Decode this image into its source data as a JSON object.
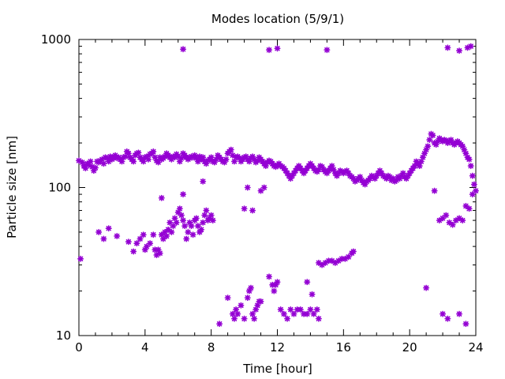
{
  "chart_data": {
    "type": "scatter",
    "title": "Modes location (5/9/1)",
    "xlabel": "Time [hour]",
    "ylabel": "Particle size [nm]",
    "xlim": [
      0,
      24
    ],
    "ylim": [
      10,
      1000
    ],
    "yscale": "log",
    "grid": false,
    "legend": "none",
    "marker": "asterisk",
    "xticks": [
      0,
      4,
      8,
      12,
      16,
      20,
      24
    ],
    "xtick_labels": [
      "0",
      "4",
      "8",
      "12",
      "16",
      "20",
      "24"
    ],
    "yticks": [
      10,
      100,
      1000
    ],
    "ytick_labels": [
      "10",
      "100",
      "1000"
    ],
    "color": "#9400d3",
    "points": [
      [
        0.0,
        152
      ],
      [
        0.1,
        33
      ],
      [
        0.2,
        148
      ],
      [
        0.3,
        140
      ],
      [
        0.4,
        135
      ],
      [
        0.5,
        145
      ],
      [
        0.6,
        142
      ],
      [
        0.7,
        150
      ],
      [
        0.8,
        138
      ],
      [
        0.9,
        130
      ],
      [
        1.0,
        136
      ],
      [
        1.1,
        150
      ],
      [
        1.2,
        148
      ],
      [
        1.3,
        152
      ],
      [
        1.4,
        155
      ],
      [
        1.5,
        145
      ],
      [
        1.6,
        160
      ],
      [
        1.7,
        158
      ],
      [
        1.8,
        150
      ],
      [
        1.9,
        162
      ],
      [
        2.0,
        155
      ],
      [
        2.1,
        160
      ],
      [
        2.2,
        165
      ],
      [
        2.3,
        158
      ],
      [
        2.4,
        160
      ],
      [
        2.5,
        155
      ],
      [
        2.6,
        150
      ],
      [
        2.7,
        160
      ],
      [
        2.8,
        162
      ],
      [
        2.9,
        175
      ],
      [
        3.0,
        170
      ],
      [
        3.1,
        160
      ],
      [
        3.2,
        155
      ],
      [
        3.3,
        150
      ],
      [
        3.4,
        165
      ],
      [
        3.5,
        170
      ],
      [
        3.6,
        172
      ],
      [
        3.7,
        160
      ],
      [
        3.8,
        155
      ],
      [
        3.9,
        150
      ],
      [
        4.0,
        160
      ],
      [
        4.1,
        162
      ],
      [
        4.2,
        155
      ],
      [
        4.3,
        168
      ],
      [
        4.4,
        170
      ],
      [
        4.5,
        175
      ],
      [
        4.6,
        160
      ],
      [
        4.7,
        152
      ],
      [
        4.8,
        148
      ],
      [
        4.9,
        160
      ],
      [
        5.0,
        155
      ],
      [
        5.1,
        158
      ],
      [
        5.2,
        162
      ],
      [
        5.3,
        170
      ],
      [
        5.4,
        165
      ],
      [
        5.5,
        160
      ],
      [
        5.6,
        155
      ],
      [
        5.7,
        162
      ],
      [
        5.8,
        160
      ],
      [
        5.9,
        168
      ],
      [
        6.0,
        162
      ],
      [
        6.1,
        150
      ],
      [
        6.2,
        158
      ],
      [
        6.3,
        170
      ],
      [
        6.4,
        165
      ],
      [
        6.5,
        160
      ],
      [
        6.6,
        155
      ],
      [
        6.7,
        158
      ],
      [
        6.8,
        162
      ],
      [
        6.9,
        160
      ],
      [
        7.0,
        165
      ],
      [
        7.1,
        158
      ],
      [
        7.2,
        150
      ],
      [
        7.3,
        162
      ],
      [
        7.4,
        155
      ],
      [
        7.5,
        160
      ],
      [
        7.6,
        150
      ],
      [
        7.7,
        145
      ],
      [
        7.8,
        152
      ],
      [
        7.9,
        155
      ],
      [
        8.0,
        160
      ],
      [
        8.1,
        150
      ],
      [
        8.2,
        148
      ],
      [
        8.3,
        155
      ],
      [
        8.4,
        165
      ],
      [
        8.5,
        160
      ],
      [
        8.6,
        155
      ],
      [
        8.7,
        150
      ],
      [
        8.8,
        148
      ],
      [
        8.9,
        155
      ],
      [
        9.0,
        170
      ],
      [
        9.1,
        175
      ],
      [
        9.2,
        180
      ],
      [
        9.3,
        165
      ],
      [
        9.4,
        150
      ],
      [
        9.5,
        160
      ],
      [
        9.6,
        162
      ],
      [
        9.7,
        158
      ],
      [
        9.8,
        150
      ],
      [
        9.9,
        155
      ],
      [
        10.0,
        160
      ],
      [
        10.1,
        162
      ],
      [
        10.2,
        155
      ],
      [
        10.3,
        150
      ],
      [
        10.4,
        158
      ],
      [
        10.5,
        162
      ],
      [
        10.6,
        155
      ],
      [
        10.7,
        148
      ],
      [
        10.8,
        152
      ],
      [
        10.9,
        160
      ],
      [
        11.0,
        155
      ],
      [
        11.1,
        150
      ],
      [
        11.2,
        145
      ],
      [
        11.3,
        140
      ],
      [
        11.4,
        148
      ],
      [
        11.5,
        152
      ],
      [
        11.6,
        150
      ],
      [
        11.7,
        145
      ],
      [
        11.8,
        140
      ],
      [
        11.9,
        138
      ],
      [
        12.0,
        142
      ],
      [
        12.1,
        145
      ],
      [
        12.2,
        140
      ],
      [
        12.3,
        138
      ],
      [
        12.4,
        135
      ],
      [
        12.5,
        130
      ],
      [
        12.6,
        125
      ],
      [
        12.7,
        120
      ],
      [
        12.8,
        115
      ],
      [
        12.9,
        120
      ],
      [
        13.0,
        125
      ],
      [
        13.1,
        130
      ],
      [
        13.2,
        135
      ],
      [
        13.3,
        140
      ],
      [
        13.4,
        135
      ],
      [
        13.5,
        130
      ],
      [
        13.6,
        125
      ],
      [
        13.7,
        130
      ],
      [
        13.8,
        135
      ],
      [
        13.9,
        140
      ],
      [
        14.0,
        145
      ],
      [
        14.1,
        140
      ],
      [
        14.2,
        135
      ],
      [
        14.3,
        130
      ],
      [
        14.4,
        128
      ],
      [
        14.5,
        132
      ],
      [
        14.6,
        140
      ],
      [
        14.7,
        138
      ],
      [
        14.8,
        132
      ],
      [
        14.9,
        128
      ],
      [
        15.0,
        125
      ],
      [
        15.1,
        130
      ],
      [
        15.2,
        135
      ],
      [
        15.3,
        140
      ],
      [
        15.4,
        132
      ],
      [
        15.5,
        125
      ],
      [
        15.6,
        120
      ],
      [
        15.7,
        125
      ],
      [
        15.8,
        130
      ],
      [
        15.9,
        128
      ],
      [
        16.0,
        125
      ],
      [
        16.1,
        128
      ],
      [
        16.2,
        130
      ],
      [
        16.3,
        125
      ],
      [
        16.4,
        120
      ],
      [
        16.5,
        118
      ],
      [
        16.6,
        115
      ],
      [
        16.7,
        110
      ],
      [
        16.8,
        112
      ],
      [
        16.9,
        115
      ],
      [
        17.0,
        118
      ],
      [
        17.1,
        112
      ],
      [
        17.2,
        108
      ],
      [
        17.3,
        105
      ],
      [
        17.4,
        110
      ],
      [
        17.5,
        112
      ],
      [
        17.6,
        115
      ],
      [
        17.7,
        120
      ],
      [
        17.8,
        118
      ],
      [
        17.9,
        115
      ],
      [
        18.0,
        120
      ],
      [
        18.1,
        125
      ],
      [
        18.2,
        130
      ],
      [
        18.3,
        125
      ],
      [
        18.4,
        120
      ],
      [
        18.5,
        118
      ],
      [
        18.6,
        115
      ],
      [
        18.7,
        120
      ],
      [
        18.8,
        118
      ],
      [
        18.9,
        112
      ],
      [
        19.0,
        115
      ],
      [
        19.1,
        110
      ],
      [
        19.2,
        112
      ],
      [
        19.3,
        118
      ],
      [
        19.4,
        115
      ],
      [
        19.5,
        120
      ],
      [
        19.6,
        125
      ],
      [
        19.7,
        118
      ],
      [
        19.8,
        115
      ],
      [
        19.9,
        120
      ],
      [
        20.0,
        125
      ],
      [
        20.1,
        130
      ],
      [
        20.2,
        135
      ],
      [
        20.3,
        140
      ],
      [
        20.4,
        150
      ],
      [
        20.5,
        145
      ],
      [
        20.6,
        140
      ],
      [
        20.7,
        150
      ],
      [
        20.8,
        160
      ],
      [
        20.9,
        170
      ],
      [
        21.0,
        180
      ],
      [
        21.1,
        190
      ],
      [
        21.2,
        210
      ],
      [
        21.3,
        230
      ],
      [
        21.4,
        225
      ],
      [
        21.5,
        200
      ],
      [
        21.6,
        195
      ],
      [
        21.7,
        205
      ],
      [
        21.8,
        215
      ],
      [
        21.9,
        210
      ],
      [
        22.0,
        205
      ],
      [
        22.1,
        210
      ],
      [
        22.2,
        208
      ],
      [
        22.3,
        200
      ],
      [
        22.4,
        205
      ],
      [
        22.5,
        210
      ],
      [
        22.6,
        200
      ],
      [
        22.7,
        195
      ],
      [
        22.8,
        200
      ],
      [
        22.9,
        205
      ],
      [
        23.0,
        200
      ],
      [
        23.1,
        195
      ],
      [
        23.2,
        190
      ],
      [
        23.3,
        180
      ],
      [
        23.4,
        170
      ],
      [
        23.5,
        160
      ],
      [
        23.6,
        155
      ],
      [
        23.7,
        140
      ],
      [
        23.8,
        120
      ],
      [
        23.9,
        105
      ],
      [
        24.0,
        95
      ],
      [
        1.2,
        50
      ],
      [
        1.5,
        45
      ],
      [
        1.8,
        53
      ],
      [
        2.3,
        47
      ],
      [
        3.0,
        43
      ],
      [
        3.3,
        37
      ],
      [
        3.5,
        42
      ],
      [
        3.7,
        45
      ],
      [
        3.9,
        48
      ],
      [
        4.0,
        38
      ],
      [
        4.1,
        40
      ],
      [
        4.3,
        42
      ],
      [
        4.5,
        48
      ],
      [
        4.6,
        38
      ],
      [
        4.7,
        35
      ],
      [
        4.8,
        38
      ],
      [
        4.9,
        36
      ],
      [
        5.0,
        48
      ],
      [
        5.1,
        45
      ],
      [
        5.2,
        50
      ],
      [
        5.3,
        47
      ],
      [
        5.4,
        52
      ],
      [
        5.5,
        58
      ],
      [
        5.6,
        50
      ],
      [
        5.7,
        55
      ],
      [
        5.8,
        62
      ],
      [
        5.9,
        58
      ],
      [
        6.0,
        68
      ],
      [
        6.1,
        72
      ],
      [
        6.2,
        65
      ],
      [
        6.3,
        60
      ],
      [
        6.4,
        55
      ],
      [
        6.5,
        45
      ],
      [
        6.6,
        50
      ],
      [
        6.7,
        58
      ],
      [
        6.8,
        55
      ],
      [
        6.9,
        48
      ],
      [
        7.0,
        60
      ],
      [
        7.1,
        62
      ],
      [
        7.2,
        55
      ],
      [
        7.3,
        50
      ],
      [
        7.4,
        52
      ],
      [
        7.5,
        58
      ],
      [
        7.6,
        65
      ],
      [
        7.7,
        70
      ],
      [
        7.8,
        60
      ],
      [
        7.9,
        62
      ],
      [
        8.0,
        65
      ],
      [
        8.1,
        60
      ],
      [
        5.0,
        85
      ],
      [
        6.3,
        90
      ],
      [
        7.5,
        110
      ],
      [
        8.5,
        12
      ],
      [
        9.0,
        18
      ],
      [
        9.3,
        14
      ],
      [
        9.4,
        13
      ],
      [
        9.5,
        15
      ],
      [
        9.6,
        14
      ],
      [
        9.8,
        16
      ],
      [
        10.0,
        13
      ],
      [
        10.2,
        18
      ],
      [
        10.3,
        20
      ],
      [
        10.4,
        21
      ],
      [
        10.5,
        14
      ],
      [
        10.6,
        13
      ],
      [
        10.7,
        15
      ],
      [
        10.8,
        16
      ],
      [
        10.9,
        17
      ],
      [
        11.0,
        17
      ],
      [
        11.5,
        25
      ],
      [
        11.7,
        22
      ],
      [
        11.8,
        20
      ],
      [
        11.9,
        22
      ],
      [
        12.0,
        23
      ],
      [
        12.2,
        15
      ],
      [
        12.4,
        14
      ],
      [
        12.6,
        13
      ],
      [
        12.8,
        15
      ],
      [
        13.0,
        14
      ],
      [
        13.2,
        15
      ],
      [
        13.4,
        15
      ],
      [
        13.6,
        14
      ],
      [
        13.8,
        14
      ],
      [
        14.0,
        15
      ],
      [
        14.2,
        14
      ],
      [
        14.4,
        15
      ],
      [
        14.5,
        13
      ],
      [
        13.8,
        23
      ],
      [
        14.1,
        19
      ],
      [
        10.0,
        72
      ],
      [
        10.2,
        100
      ],
      [
        10.5,
        70
      ],
      [
        11.0,
        95
      ],
      [
        11.2,
        100
      ],
      [
        14.5,
        31
      ],
      [
        14.7,
        30
      ],
      [
        14.9,
        31
      ],
      [
        15.1,
        32
      ],
      [
        15.3,
        32
      ],
      [
        15.5,
        31
      ],
      [
        15.7,
        32
      ],
      [
        15.9,
        33
      ],
      [
        16.1,
        33
      ],
      [
        16.3,
        34
      ],
      [
        16.5,
        36
      ],
      [
        16.6,
        37
      ],
      [
        21.0,
        21
      ],
      [
        21.5,
        95
      ],
      [
        21.8,
        60
      ],
      [
        22.0,
        62
      ],
      [
        22.2,
        65
      ],
      [
        22.4,
        58
      ],
      [
        22.6,
        56
      ],
      [
        22.8,
        60
      ],
      [
        23.0,
        62
      ],
      [
        23.2,
        60
      ],
      [
        23.4,
        75
      ],
      [
        23.6,
        72
      ],
      [
        23.8,
        90
      ],
      [
        22.0,
        14
      ],
      [
        22.3,
        13
      ],
      [
        23.0,
        14
      ],
      [
        23.4,
        12
      ],
      [
        6.3,
        860
      ],
      [
        11.5,
        850
      ],
      [
        12.0,
        870
      ],
      [
        15.0,
        850
      ],
      [
        22.3,
        880
      ],
      [
        23.0,
        840
      ],
      [
        23.5,
        880
      ],
      [
        23.7,
        900
      ]
    ]
  }
}
